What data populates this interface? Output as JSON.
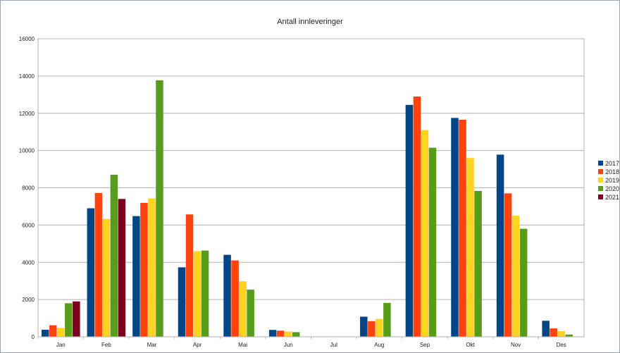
{
  "chart_data": {
    "type": "bar",
    "title": "Antall innleveringer",
    "xlabel": "",
    "ylabel": "",
    "ylim": [
      0,
      16000
    ],
    "yticks": [
      0,
      2000,
      4000,
      6000,
      8000,
      10000,
      12000,
      14000,
      16000
    ],
    "grid": true,
    "legend_position": "right",
    "categories": [
      "Jan",
      "Feb",
      "Mar",
      "Apr",
      "Mai",
      "Jun",
      "Jul",
      "Aug",
      "Sep",
      "Okt",
      "Nov",
      "Des"
    ],
    "series": [
      {
        "name": "2017",
        "color": "#004586",
        "values": [
          380,
          6900,
          6480,
          3730,
          4400,
          370,
          0,
          1080,
          12450,
          11750,
          9780,
          860
        ]
      },
      {
        "name": "2018",
        "color": "#ff420e",
        "values": [
          620,
          7720,
          7190,
          6570,
          4100,
          330,
          0,
          840,
          12900,
          11650,
          7700,
          450
        ]
      },
      {
        "name": "2019",
        "color": "#ffd320",
        "values": [
          480,
          6330,
          7430,
          4600,
          2980,
          280,
          0,
          960,
          11100,
          9600,
          6500,
          300
        ]
      },
      {
        "name": "2020",
        "color": "#579d1c",
        "values": [
          1800,
          8700,
          13770,
          4630,
          2530,
          250,
          0,
          1820,
          10150,
          7830,
          5800,
          120
        ]
      },
      {
        "name": "2021",
        "color": "#7e0021",
        "values": [
          1900,
          7400,
          null,
          null,
          null,
          null,
          null,
          null,
          null,
          null,
          null,
          null
        ]
      }
    ]
  }
}
